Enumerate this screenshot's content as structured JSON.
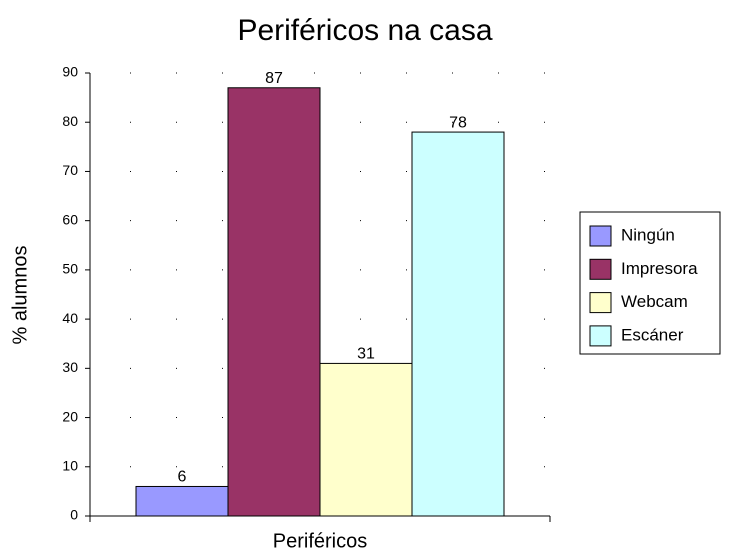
{
  "chart_data": {
    "type": "bar",
    "title": "Periféricos na casa",
    "y_label": "% alumnos",
    "categories": [
      "Periféricos"
    ],
    "series": [
      {
        "name": "Ningún",
        "color": "#9999ff",
        "values": [
          6
        ]
      },
      {
        "name": "Impresora",
        "color": "#993366",
        "values": [
          87
        ]
      },
      {
        "name": "Webcam",
        "color": "#ffffcc",
        "values": [
          31
        ]
      },
      {
        "name": "Escáner",
        "color": "#ccffff",
        "values": [
          78
        ]
      }
    ],
    "ylim": [
      0,
      90
    ],
    "yticks": [
      0,
      10,
      20,
      30,
      40,
      50,
      60,
      70,
      80,
      90
    ],
    "grid": true,
    "legend": "right"
  }
}
